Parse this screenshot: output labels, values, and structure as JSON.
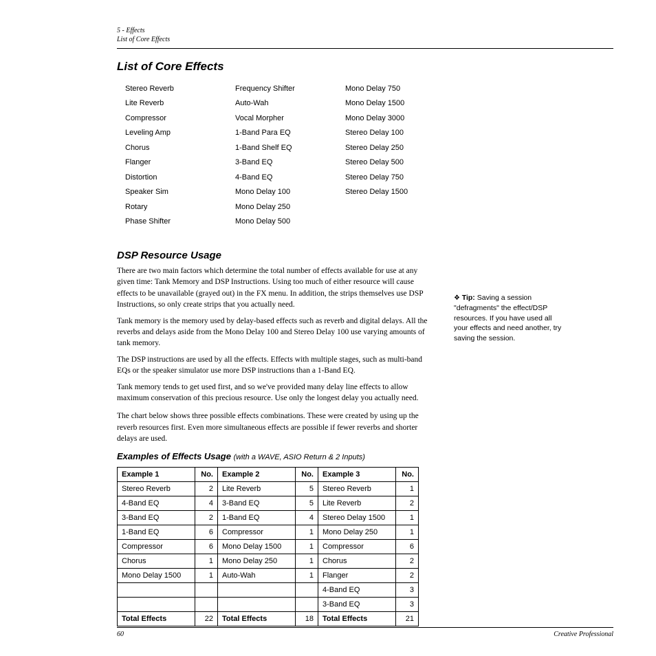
{
  "header": {
    "line1": "5 - Effects",
    "line2": "List of Core Effects"
  },
  "main_title": "List of Core Effects",
  "effects_columns": [
    [
      "Stereo Reverb",
      "Lite Reverb",
      "Compressor",
      "Leveling Amp",
      "Chorus",
      "Flanger",
      "Distortion",
      "Speaker Sim",
      "Rotary",
      "Phase Shifter"
    ],
    [
      "Frequency Shifter",
      "Auto-Wah",
      "Vocal Morpher",
      "1-Band Para EQ",
      "1-Band Shelf EQ",
      "3-Band EQ",
      "4-Band EQ",
      "Mono Delay 100",
      "Mono Delay 250",
      "Mono Delay 500"
    ],
    [
      "Mono Delay 750",
      "Mono Delay 1500",
      "Mono Delay 3000",
      "Stereo Delay 100",
      "Stereo Delay 250",
      "Stereo Delay 500",
      "Stereo Delay 750",
      "Stereo Delay 1500"
    ]
  ],
  "dsp_title": "DSP Resource Usage",
  "paragraphs": [
    "There are two main factors which determine the total number of effects available for use at any given time: Tank Memory and DSP Instructions. Using too much of either resource will cause effects to be unavailable (grayed out) in the FX menu. In addition, the strips themselves use DSP Instructions, so only create strips that you actually need.",
    "Tank memory is the memory used by delay-based effects such as reverb and digital delays. All the reverbs and delays aside from the Mono Delay 100 and Stereo Delay 100 use varying amounts of tank memory.",
    "The DSP instructions are used by all the effects. Effects with multiple stages, such as multi-band EQs or the speaker simulator use more DSP instructions than a 1-Band EQ.",
    "Tank memory tends to get used first, and so we've provided many delay line effects to allow maximum conservation of this precious resource. Use only the longest delay you actually need.",
    "The chart below shows three possible effects combinations. These were created by using up the reverb resources first. Even more simultaneous effects are possible if fewer reverbs and shorter delays are used."
  ],
  "tip": {
    "label": "Tip:",
    "text": " Saving a session \"defragments\" the effect/DSP resources. If you have used all your effects and need another, try saving the session."
  },
  "examples_title": "Examples of Effects Usage",
  "examples_sub": "(with a WAVE, ASIO Return & 2 Inputs)",
  "table": {
    "headers": [
      "Example 1",
      "No.",
      "Example 2",
      "No.",
      "Example 3",
      "No."
    ],
    "rows": [
      [
        "Stereo Reverb",
        "2",
        "Lite Reverb",
        "5",
        "Stereo Reverb",
        "1"
      ],
      [
        "4-Band EQ",
        "4",
        "3-Band EQ",
        "5",
        "Lite Reverb",
        "2"
      ],
      [
        "3-Band EQ",
        "2",
        "1-Band EQ",
        "4",
        "Stereo Delay 1500",
        "1"
      ],
      [
        "1-Band EQ",
        "6",
        "Compressor",
        "1",
        "Mono Delay 250",
        "1"
      ],
      [
        "Compressor",
        "6",
        "Mono Delay 1500",
        "1",
        "Compressor",
        "6"
      ],
      [
        "Chorus",
        "1",
        "Mono Delay 250",
        "1",
        "Chorus",
        "2"
      ],
      [
        "Mono Delay 1500",
        "1",
        "Auto-Wah",
        "1",
        "Flanger",
        "2"
      ],
      [
        "",
        "",
        "",
        "",
        "4-Band EQ",
        "3"
      ],
      [
        "",
        "",
        "",
        "",
        "3-Band EQ",
        "3"
      ]
    ],
    "totals": [
      "Total Effects",
      "22",
      "Total Effects",
      "18",
      "Total Effects",
      "21"
    ]
  },
  "footer": {
    "page": "60",
    "brand": "Creative Professional"
  }
}
